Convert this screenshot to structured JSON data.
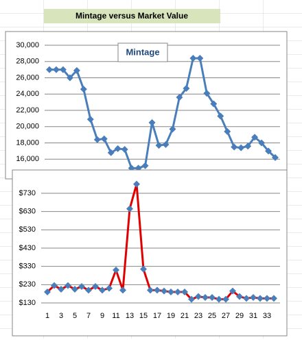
{
  "cell_title": "Mintage versus Market Value",
  "chart_data": [
    {
      "type": "line",
      "title": "Mintage",
      "values": [
        27000,
        27000,
        27000,
        26000,
        26900,
        24600,
        20900,
        18400,
        18500,
        16800,
        17300,
        17200,
        14900,
        14900,
        15200,
        20500,
        17700,
        17800,
        19700,
        23600,
        24700,
        28400,
        28400,
        24100,
        22800,
        21300,
        19400,
        17500,
        17400,
        17600,
        18700,
        18000,
        17000,
        16200
      ],
      "line_color": "#4a7ebb",
      "marker_color": "#4a7ebb",
      "ylim": [
        14000,
        30000
      ],
      "yticks": [
        {
          "value": 16000,
          "label": "16,000"
        },
        {
          "value": 18000,
          "label": "18,000"
        },
        {
          "value": 20000,
          "label": "20,000"
        },
        {
          "value": 22000,
          "label": "22,000"
        },
        {
          "value": 24000,
          "label": "24,000"
        },
        {
          "value": 26000,
          "label": "26,000"
        },
        {
          "value": 28000,
          "label": "28,000"
        },
        {
          "value": 30000,
          "label": "30,000"
        }
      ],
      "grid": true
    },
    {
      "type": "line",
      "categories": [
        1,
        null,
        3,
        null,
        5,
        null,
        7,
        null,
        9,
        null,
        11,
        null,
        13,
        null,
        15,
        null,
        17,
        null,
        19,
        null,
        21,
        null,
        23,
        null,
        25,
        null,
        27,
        null,
        29,
        null,
        31,
        null,
        33,
        null
      ],
      "values": [
        190,
        225,
        205,
        225,
        205,
        220,
        200,
        220,
        200,
        210,
        310,
        200,
        645,
        780,
        315,
        200,
        200,
        195,
        190,
        190,
        190,
        150,
        165,
        160,
        160,
        150,
        150,
        195,
        165,
        155,
        160,
        155,
        155,
        155
      ],
      "line_color": "#e00000",
      "marker_color": "#4a7ebb",
      "ylim": [
        130,
        730
      ],
      "yticks": [
        {
          "value": 130,
          "label": "$130"
        },
        {
          "value": 230,
          "label": "$230"
        },
        {
          "value": 330,
          "label": "$330"
        },
        {
          "value": 430,
          "label": "$430"
        },
        {
          "value": 530,
          "label": "$530"
        },
        {
          "value": 630,
          "label": "$630"
        },
        {
          "value": 730,
          "label": "$730"
        }
      ],
      "grid": true
    }
  ]
}
